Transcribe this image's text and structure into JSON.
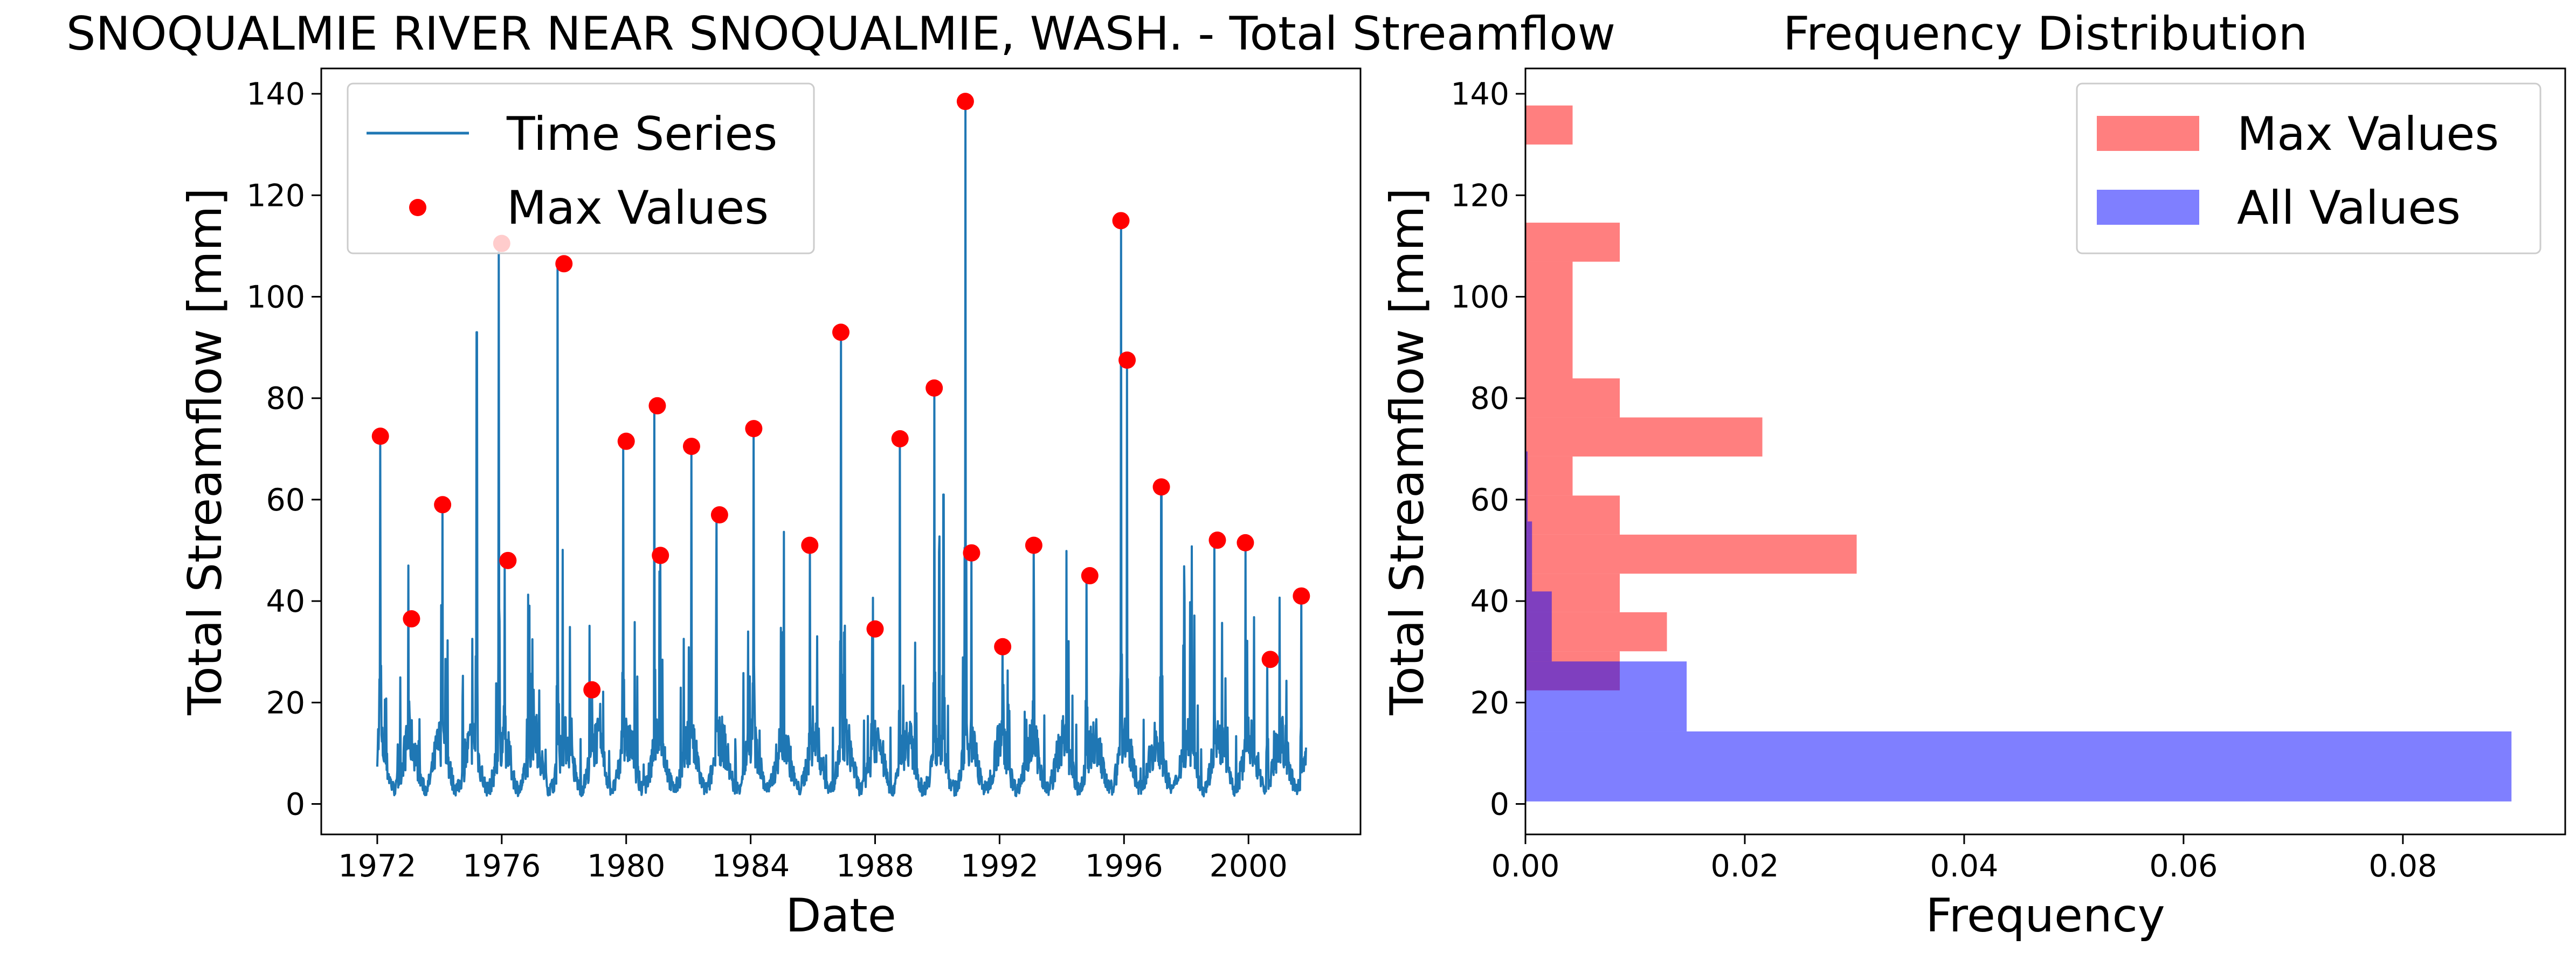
{
  "chart_data": [
    {
      "type": "line",
      "title": "SNOQUALMIE RIVER NEAR SNOQUALMIE, WASH. - Total Streamflow",
      "xlabel": "Date",
      "ylabel": "Total Streamflow [mm]",
      "xlim": [
        1970.2,
        2003.6
      ],
      "ylim": [
        -6,
        145
      ],
      "x_ticks": [
        1972,
        1976,
        1980,
        1984,
        1988,
        1992,
        1996,
        2000
      ],
      "y_ticks": [
        0,
        20,
        40,
        60,
        80,
        100,
        120,
        140
      ],
      "grid": false,
      "legend_position": "upper-left",
      "colors": {
        "time_series": "#1f77b4",
        "max_values": "#ff0000"
      },
      "series": [
        {
          "name": "Time Series",
          "type": "line",
          "peaks": [
            [
              1972.1,
              72
            ],
            [
              1973.0,
              47
            ],
            [
              1974.1,
              59
            ],
            [
              1975.2,
              93
            ],
            [
              1975.9,
              110
            ],
            [
              1976.1,
              48
            ],
            [
              1977.8,
              107
            ],
            [
              1978.9,
              22
            ],
            [
              1979.9,
              72
            ],
            [
              1980.9,
              79
            ],
            [
              1981.1,
              49
            ],
            [
              1982.1,
              70
            ],
            [
              1982.9,
              57
            ],
            [
              1984.1,
              74
            ],
            [
              1985.9,
              51
            ],
            [
              1986.9,
              93
            ],
            [
              1987.9,
              34
            ],
            [
              1988.8,
              72
            ],
            [
              1989.9,
              82
            ],
            [
              1990.2,
              61
            ],
            [
              1990.9,
              138
            ],
            [
              1991.1,
              50
            ],
            [
              1992.1,
              31
            ],
            [
              1993.1,
              51
            ],
            [
              1994.8,
              45
            ],
            [
              1995.9,
              115
            ],
            [
              1996.1,
              87
            ],
            [
              1997.2,
              62
            ],
            [
              1998.9,
              52
            ],
            [
              1999.9,
              51
            ],
            [
              2000.6,
              28
            ],
            [
              2001.7,
              41
            ]
          ]
        },
        {
          "name": "Max Values",
          "type": "scatter",
          "points": [
            [
              1972.1,
              72.5
            ],
            [
              1973.1,
              36.5
            ],
            [
              1974.1,
              59
            ],
            [
              1976.0,
              110.5
            ],
            [
              1976.2,
              48
            ],
            [
              1978.0,
              106.5
            ],
            [
              1978.9,
              22.5
            ],
            [
              1980.0,
              71.5
            ],
            [
              1981.0,
              78.5
            ],
            [
              1981.1,
              49
            ],
            [
              1982.1,
              70.5
            ],
            [
              1983.0,
              57
            ],
            [
              1984.1,
              74
            ],
            [
              1985.9,
              51
            ],
            [
              1986.9,
              93
            ],
            [
              1988.0,
              34.5
            ],
            [
              1988.8,
              72
            ],
            [
              1989.9,
              82
            ],
            [
              1990.9,
              138.5
            ],
            [
              1991.1,
              49.5
            ],
            [
              1992.1,
              31
            ],
            [
              1993.1,
              51
            ],
            [
              1994.9,
              45
            ],
            [
              1995.9,
              115
            ],
            [
              1996.1,
              87.5
            ],
            [
              1997.2,
              62.5
            ],
            [
              1999.0,
              52
            ],
            [
              1999.9,
              51.5
            ],
            [
              2000.7,
              28.5
            ],
            [
              2001.7,
              41
            ]
          ]
        }
      ]
    },
    {
      "type": "bar",
      "orientation": "horizontal",
      "title": "Frequency Distribution",
      "xlabel": "Frequency",
      "ylabel": "Total Streamflow [mm]",
      "xlim": [
        0,
        0.0948
      ],
      "ylim": [
        -6,
        145
      ],
      "x_ticks": [
        0.0,
        0.02,
        0.04,
        0.06,
        0.08
      ],
      "x_tick_labels": [
        "0.00",
        "0.02",
        "0.04",
        "0.06",
        "0.08"
      ],
      "y_ticks": [
        0,
        20,
        40,
        60,
        80,
        100,
        120,
        140
      ],
      "legend_position": "upper-right",
      "series": [
        {
          "name": "Max Values",
          "color": "#ff0000",
          "opacity": 0.5,
          "bins": [
            {
              "y0": 22.4,
              "y1": 30.1,
              "freq": 0.0086
            },
            {
              "y0": 30.1,
              "y1": 37.8,
              "freq": 0.0129
            },
            {
              "y0": 37.8,
              "y1": 45.4,
              "freq": 0.0086
            },
            {
              "y0": 45.4,
              "y1": 53.1,
              "freq": 0.0302
            },
            {
              "y0": 53.1,
              "y1": 60.8,
              "freq": 0.0086
            },
            {
              "y0": 60.8,
              "y1": 68.5,
              "freq": 0.0043
            },
            {
              "y0": 68.5,
              "y1": 76.2,
              "freq": 0.0216
            },
            {
              "y0": 76.2,
              "y1": 83.9,
              "freq": 0.0086
            },
            {
              "y0": 83.9,
              "y1": 91.5,
              "freq": 0.0043
            },
            {
              "y0": 91.5,
              "y1": 99.2,
              "freq": 0.0043
            },
            {
              "y0": 99.2,
              "y1": 106.9,
              "freq": 0.0043
            },
            {
              "y0": 106.9,
              "y1": 114.6,
              "freq": 0.0086
            },
            {
              "y0": 114.6,
              "y1": 130.0,
              "freq": 0.0
            },
            {
              "y0": 130.0,
              "y1": 137.7,
              "freq": 0.0043
            }
          ]
        },
        {
          "name": "All Values",
          "color": "#0000ff",
          "opacity": 0.5,
          "bins": [
            {
              "y0": 0.5,
              "y1": 14.3,
              "freq": 0.0899
            },
            {
              "y0": 14.3,
              "y1": 28.1,
              "freq": 0.0147
            },
            {
              "y0": 28.1,
              "y1": 41.9,
              "freq": 0.0024
            },
            {
              "y0": 41.9,
              "y1": 55.7,
              "freq": 0.0006
            },
            {
              "y0": 55.7,
              "y1": 69.5,
              "freq": 0.0002
            }
          ]
        }
      ]
    }
  ]
}
